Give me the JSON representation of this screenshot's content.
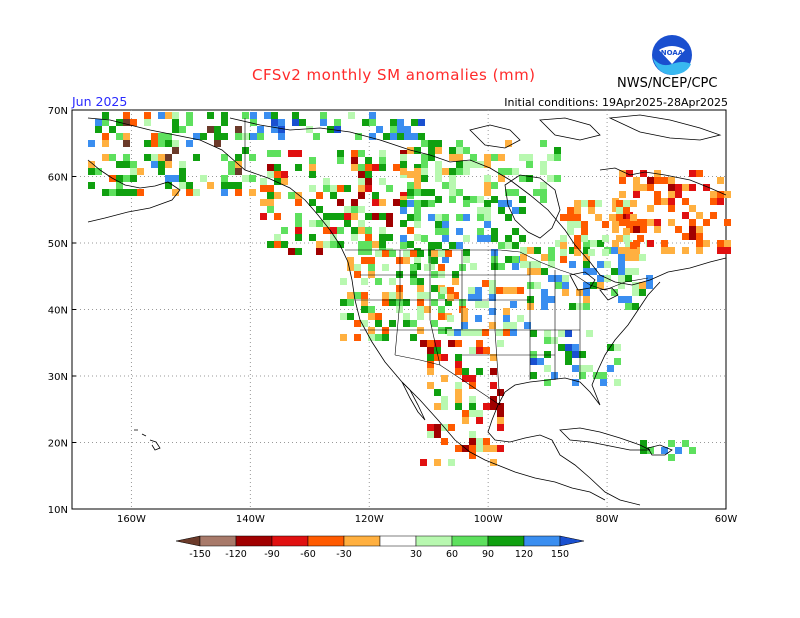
{
  "header": {
    "title": "CFSv2 monthly SM anomalies (mm)",
    "agency": "NWS/NCEP/CPC",
    "month": "Jun 2025",
    "initial_conditions": "Initial conditions: 19Apr2025-28Apr2025",
    "logo_text": "NOAA"
  },
  "map": {
    "lon_range": [
      -170,
      -60
    ],
    "lat_range": [
      10,
      70
    ],
    "lon_ticks": [
      "160W",
      "140W",
      "120W",
      "100W",
      "80W",
      "60W"
    ],
    "lat_ticks": [
      "70N",
      "60N",
      "50N",
      "40N",
      "30N",
      "20N",
      "10N"
    ],
    "grid": "dotted"
  },
  "legend": {
    "labels": [
      "-150",
      "-120",
      "-90",
      "-60",
      "-30",
      "30",
      "60",
      "90",
      "120",
      "150"
    ],
    "colors": [
      "#6b3a2a",
      "#a87a6a",
      "#a00000",
      "#e01010",
      "#ff5a00",
      "#ffb040",
      "#ffffff",
      "#b8f8b0",
      "#5ee05e",
      "#10a010",
      "#3a8ef0",
      "#1a50d0"
    ]
  },
  "colors": {
    "land_outline": "#000000",
    "frame": "#000000",
    "grid": "#999999"
  }
}
